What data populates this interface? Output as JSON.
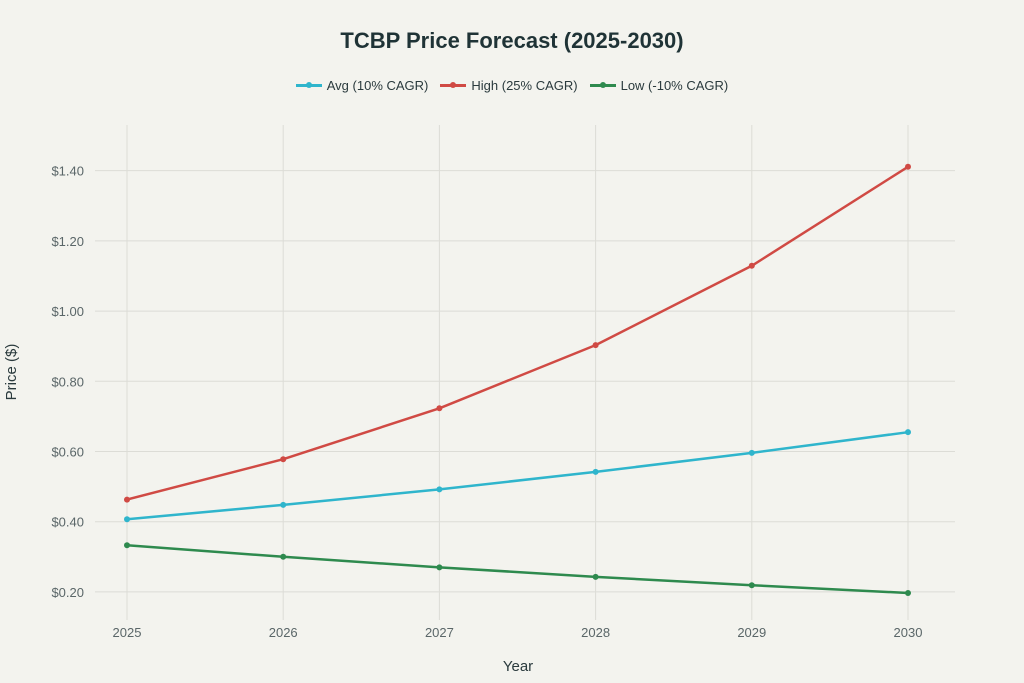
{
  "chart_data": {
    "type": "line",
    "title": "TCBP Price Forecast (2025-2030)",
    "xlabel": "Year",
    "ylabel": "Price ($)",
    "x": [
      2025,
      2026,
      2027,
      2028,
      2029,
      2030
    ],
    "x_tick_labels": [
      "2025",
      "2026",
      "2027",
      "2028",
      "2029",
      "2030"
    ],
    "y_ticks": [
      0.2,
      0.4,
      0.6,
      0.8,
      1.0,
      1.2,
      1.4
    ],
    "y_tick_labels": [
      "$0.20",
      "$0.40",
      "$0.60",
      "$0.80",
      "$1.00",
      "$1.20",
      "$1.40"
    ],
    "ylim": [
      0.12,
      1.53
    ],
    "grid": true,
    "legend_position": "top-center",
    "series": [
      {
        "name": "Avg (10% CAGR)",
        "color": "#2fb5cc",
        "values": [
          0.407,
          0.448,
          0.492,
          0.542,
          0.596,
          0.655
        ]
      },
      {
        "name": "High (25% CAGR)",
        "color": "#d04a44",
        "values": [
          0.463,
          0.578,
          0.723,
          0.903,
          1.129,
          1.411
        ]
      },
      {
        "name": "Low (-10% CAGR)",
        "color": "#2e8a4e",
        "values": [
          0.333,
          0.3,
          0.27,
          0.243,
          0.219,
          0.197
        ]
      }
    ]
  }
}
